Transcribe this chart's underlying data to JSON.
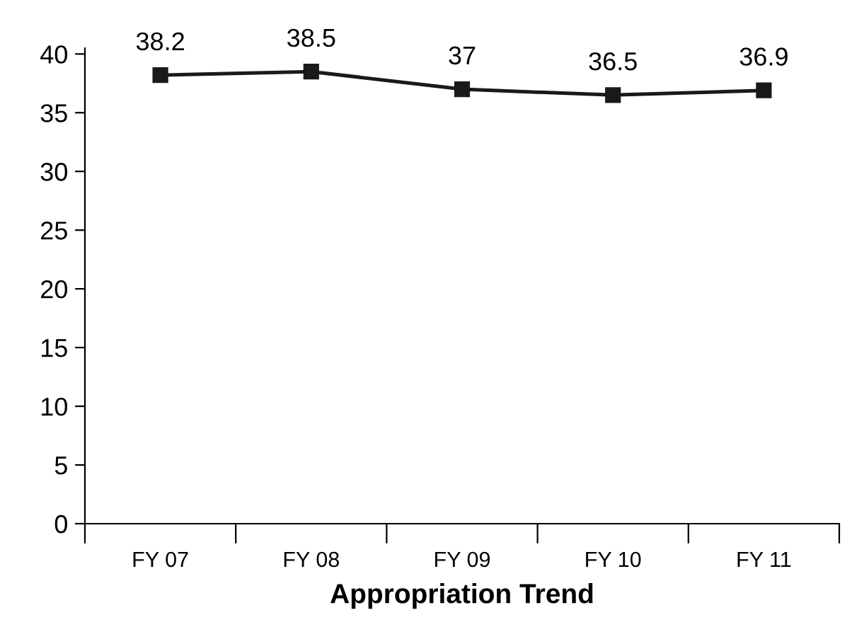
{
  "chart_data": {
    "type": "line",
    "xlabel": "Appropriation Trend",
    "categories": [
      "FY 07",
      "FY 08",
      "FY 09",
      "FY 10",
      "FY 11"
    ],
    "series": [
      {
        "color": "#1a1a1a",
        "values": [
          38.2,
          38.5,
          37,
          36.5,
          36.9
        ]
      }
    ],
    "ylim": [
      0,
      40.5
    ],
    "yticks": [
      0,
      5,
      10,
      15,
      20,
      25,
      30,
      35,
      40
    ],
    "data_labels": true,
    "marker": "square",
    "line_style": "solid",
    "grid": false
  }
}
